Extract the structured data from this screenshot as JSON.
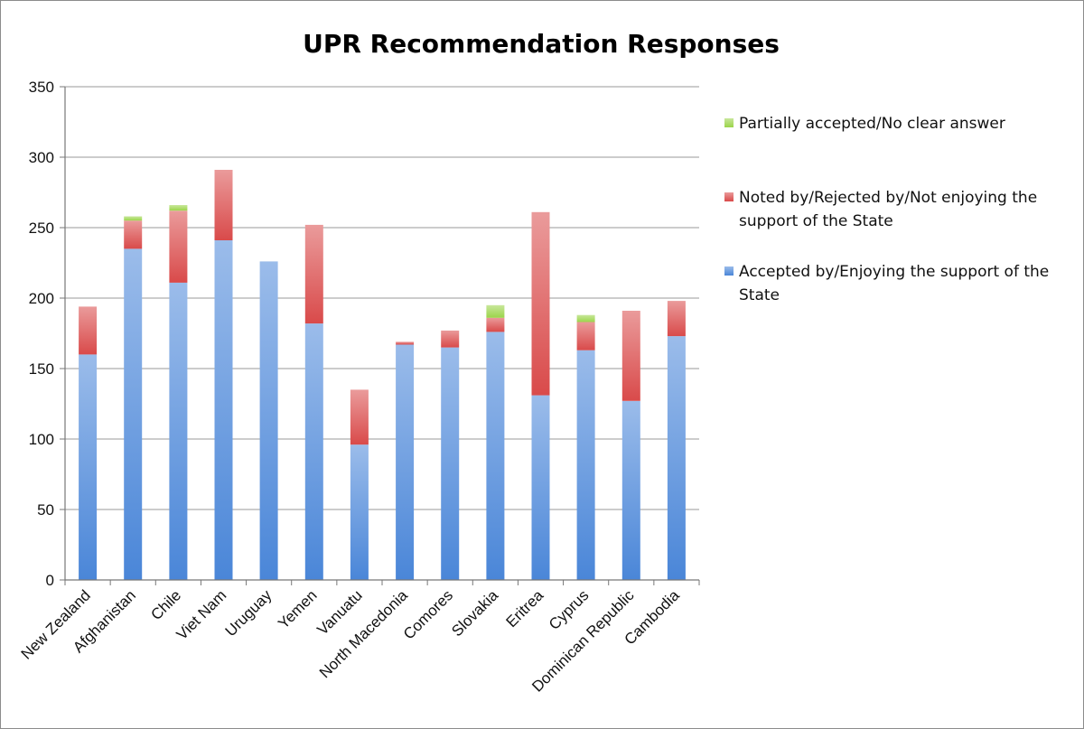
{
  "chart_data": {
    "type": "bar",
    "stacked": true,
    "title": "UPR Recommendation Responses",
    "xlabel": "",
    "ylabel": "",
    "ylim": [
      0,
      350
    ],
    "yticks": [
      0,
      50,
      100,
      150,
      200,
      250,
      300,
      350
    ],
    "grid": true,
    "legend_position": "right",
    "categories": [
      "New Zealand",
      "Afghanistan",
      "Chile",
      "Viet Nam",
      "Uruguay",
      "Yemen",
      "Vanuatu",
      "North Macedonia",
      "Comores",
      "Slovakia",
      "Eritrea",
      "Cyprus",
      "Dominican Republic",
      "Cambodia"
    ],
    "series": [
      {
        "name": "Accepted by/Enjoying the support of the State",
        "legend_lines": [
          "Accepted by/Enjoying the support of the",
          "State"
        ],
        "color": "#4a86d8",
        "values": [
          160,
          235,
          211,
          241,
          226,
          182,
          96,
          167,
          165,
          176,
          131,
          163,
          127,
          173
        ]
      },
      {
        "name": "Noted by/Rejected by/Not enjoying the support of the State",
        "legend_lines": [
          "Noted by/Rejected by/Not enjoying the",
          "support of the State"
        ],
        "color": "#d94a4a",
        "values": [
          34,
          20,
          51,
          50,
          0,
          70,
          39,
          2,
          12,
          10,
          130,
          20,
          64,
          25
        ]
      },
      {
        "name": "Partially accepted/No clear answer",
        "legend_lines": [
          "Partially accepted/No clear answer"
        ],
        "color": "#9bd44a",
        "values": [
          0,
          3,
          4,
          0,
          0,
          0,
          0,
          0,
          0,
          9,
          0,
          5,
          0,
          0
        ]
      }
    ]
  }
}
